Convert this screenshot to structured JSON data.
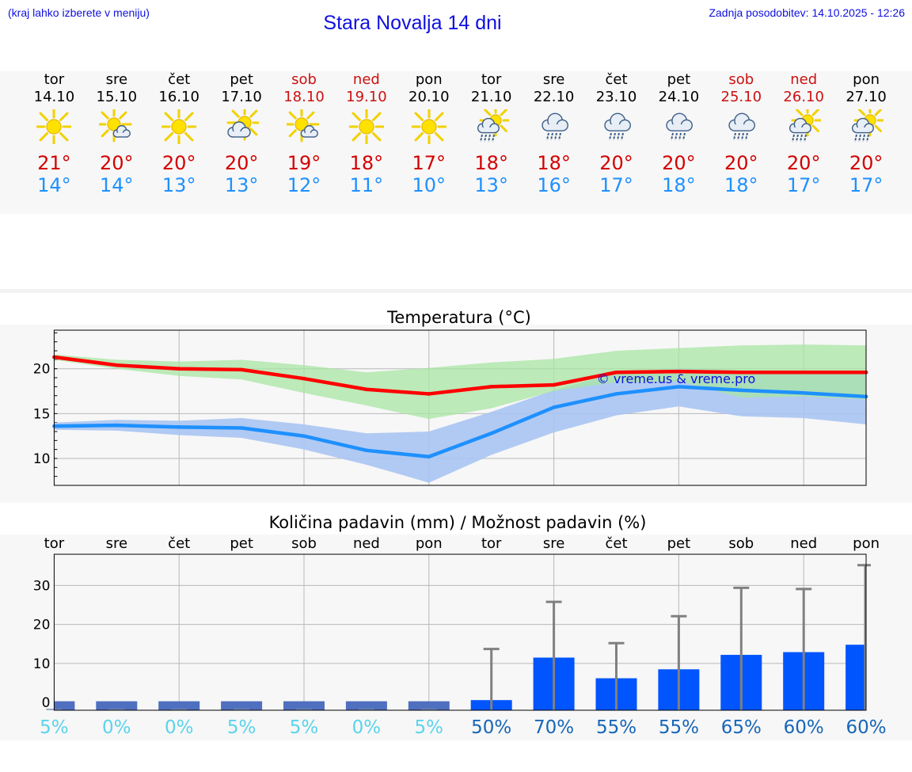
{
  "header": {
    "hint": "(kraj lahko izberete v meniju)",
    "title": "Stara Novalja 14 dni",
    "updated": "Zadnja posodobitev: 14.10.2025 - 12:26"
  },
  "days": [
    {
      "name": "tor",
      "date": "14.10",
      "weekend": false,
      "icon": "sun",
      "max": "21°",
      "min": "14°"
    },
    {
      "name": "sre",
      "date": "15.10",
      "weekend": false,
      "icon": "sun-small-cloud",
      "max": "20°",
      "min": "14°"
    },
    {
      "name": "čet",
      "date": "16.10",
      "weekend": false,
      "icon": "sun",
      "max": "20°",
      "min": "13°"
    },
    {
      "name": "pet",
      "date": "17.10",
      "weekend": false,
      "icon": "sun-cloud",
      "max": "20°",
      "min": "13°"
    },
    {
      "name": "sob",
      "date": "18.10",
      "weekend": true,
      "icon": "sun-small-cloud",
      "max": "19°",
      "min": "12°"
    },
    {
      "name": "ned",
      "date": "19.10",
      "weekend": true,
      "icon": "sun",
      "max": "18°",
      "min": "11°"
    },
    {
      "name": "pon",
      "date": "20.10",
      "weekend": false,
      "icon": "sun",
      "max": "17°",
      "min": "10°"
    },
    {
      "name": "tor",
      "date": "21.10",
      "weekend": false,
      "icon": "sun-cloud-rain",
      "max": "18°",
      "min": "13°"
    },
    {
      "name": "sre",
      "date": "22.10",
      "weekend": false,
      "icon": "cloud-rain",
      "max": "18°",
      "min": "16°"
    },
    {
      "name": "čet",
      "date": "23.10",
      "weekend": false,
      "icon": "cloud-rain",
      "max": "20°",
      "min": "17°"
    },
    {
      "name": "pet",
      "date": "24.10",
      "weekend": false,
      "icon": "cloud-rain",
      "max": "20°",
      "min": "18°"
    },
    {
      "name": "sob",
      "date": "25.10",
      "weekend": true,
      "icon": "cloud-rain",
      "max": "20°",
      "min": "18°"
    },
    {
      "name": "ned",
      "date": "26.10",
      "weekend": true,
      "icon": "sun-cloud-rain",
      "max": "20°",
      "min": "17°"
    },
    {
      "name": "pon",
      "date": "27.10",
      "weekend": false,
      "icon": "sun-cloud-rain",
      "max": "20°",
      "min": "17°"
    }
  ],
  "colors": {
    "max_line": "#ff0000",
    "min_line": "#1e90ff",
    "max_band": "#a8e6a3",
    "min_band": "#a9c4f2",
    "overlap_band": "#7fbfb4",
    "bar": "#0055ff",
    "error_bar": "#808080",
    "prob_low": "#5bd3ec",
    "prob_high": "#1766b8"
  },
  "chart_data": [
    {
      "type": "line",
      "title": "Temperatura (°C)",
      "watermark": "© vreme.us & vreme.pro",
      "ylim": [
        7,
        24.3
      ],
      "yticks": [
        10,
        15,
        20
      ],
      "series": [
        {
          "name": "max",
          "values": [
            21.3,
            20.4,
            20.0,
            19.9,
            18.9,
            17.7,
            17.2,
            18.0,
            18.2,
            19.6,
            19.7,
            19.6,
            19.6,
            19.6
          ],
          "band_low": [
            21.0,
            20.0,
            19.2,
            18.8,
            17.3,
            15.9,
            14.4,
            15.6,
            17.5,
            18.5,
            18.6,
            16.8,
            16.9,
            16.6
          ],
          "band_high": [
            21.6,
            21.0,
            20.8,
            21.0,
            20.4,
            19.6,
            20.1,
            20.7,
            21.1,
            22.0,
            22.3,
            22.6,
            22.7,
            22.6
          ]
        },
        {
          "name": "min",
          "values": [
            13.6,
            13.7,
            13.5,
            13.4,
            12.5,
            10.9,
            10.2,
            12.8,
            15.7,
            17.2,
            18.0,
            17.6,
            17.3,
            16.9
          ],
          "band_low": [
            13.2,
            13.1,
            12.6,
            12.3,
            11.0,
            9.3,
            7.3,
            10.4,
            12.9,
            14.8,
            15.8,
            14.7,
            14.5,
            13.8
          ],
          "band_high": [
            14.0,
            14.3,
            14.2,
            14.5,
            13.8,
            12.8,
            13.0,
            15.2,
            17.6,
            19.5,
            20.1,
            19.8,
            19.8,
            19.6
          ]
        }
      ]
    },
    {
      "type": "bar",
      "title": "Količina padavin (mm) / Možnost padavin (%)",
      "categories": [
        "tor",
        "sre",
        "čet",
        "pet",
        "sob",
        "ned",
        "pon",
        "tor",
        "sre",
        "čet",
        "pet",
        "sob",
        "ned",
        "pon"
      ],
      "ylim": [
        -2,
        38
      ],
      "yticks": [
        0,
        10,
        20,
        30
      ],
      "values": [
        0,
        0,
        0,
        0,
        0,
        0,
        0,
        0.6,
        11.5,
        6.2,
        8.5,
        12.2,
        12.9,
        14.8
      ],
      "error_high": [
        0,
        0,
        0,
        0,
        0,
        0,
        0,
        13.7,
        25.8,
        15.2,
        22.1,
        29.4,
        29.1,
        35.2
      ],
      "probabilities": [
        "5%",
        "0%",
        "0%",
        "5%",
        "5%",
        "0%",
        "5%",
        "50%",
        "70%",
        "55%",
        "55%",
        "65%",
        "60%",
        "60%"
      ]
    }
  ]
}
